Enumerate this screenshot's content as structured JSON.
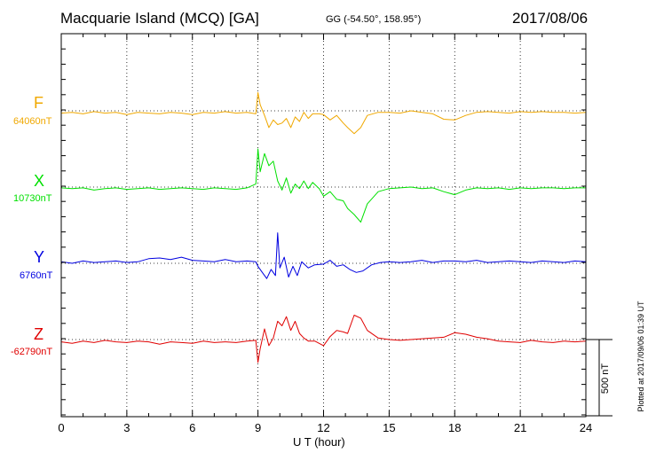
{
  "header": {
    "station": "Macquarie Island (MCQ)  [GA]",
    "coords": "GG (-54.50°, 158.95°)",
    "date": "2017/08/06"
  },
  "footer": {
    "plotted": "Plotted at 2017/09/06 01:39 UT",
    "scale_label": "500 nT"
  },
  "chart_data": {
    "type": "line",
    "xlabel": "U T (hour)",
    "xlim": [
      0,
      24
    ],
    "xticks": [
      "0",
      "3",
      "6",
      "9",
      "12",
      "15",
      "18",
      "21",
      "24"
    ],
    "grid": true,
    "scale_bar_nT": 500,
    "series": [
      {
        "name": "F",
        "baseline_label": "64060nT",
        "color": "#f0a800",
        "x": [
          0,
          0.5,
          1,
          1.5,
          2,
          2.5,
          3,
          3.5,
          4,
          4.5,
          5,
          5.5,
          6,
          6.5,
          7,
          7.5,
          8,
          8.5,
          8.9,
          9.0,
          9.1,
          9.3,
          9.5,
          9.7,
          9.9,
          10.1,
          10.3,
          10.5,
          10.7,
          10.9,
          11.1,
          11.3,
          11.5,
          11.8,
          12.0,
          12.3,
          12.6,
          12.9,
          13.1,
          13.4,
          13.7,
          14.0,
          14.5,
          15,
          15.5,
          16,
          16.5,
          17,
          17.5,
          18,
          18.5,
          19,
          19.5,
          20,
          20.5,
          21,
          21.5,
          22,
          22.5,
          23,
          23.5,
          24
        ],
        "values": [
          -15,
          -10,
          -20,
          -5,
          -15,
          -10,
          -25,
          -10,
          -15,
          -20,
          -10,
          -15,
          -25,
          -10,
          -15,
          -5,
          -15,
          -10,
          -20,
          120,
          40,
          -30,
          -110,
          -60,
          -90,
          -80,
          -50,
          -110,
          -40,
          -70,
          -10,
          -50,
          -20,
          -20,
          -25,
          -60,
          -30,
          -80,
          -110,
          -150,
          -110,
          -30,
          -10,
          -10,
          -15,
          0,
          -10,
          -20,
          -55,
          -60,
          -30,
          -10,
          -5,
          -10,
          -15,
          -5,
          -10,
          -5,
          -10,
          -10,
          -15,
          -10
        ]
      },
      {
        "name": "X",
        "baseline_label": "10730nT",
        "color": "#00e000",
        "x": [
          0,
          0.5,
          1,
          1.5,
          2,
          2.5,
          3,
          3.5,
          4,
          4.5,
          5,
          5.5,
          6,
          6.5,
          7,
          7.5,
          8,
          8.5,
          8.9,
          9.0,
          9.1,
          9.3,
          9.5,
          9.7,
          9.9,
          10.1,
          10.3,
          10.5,
          10.7,
          10.9,
          11.1,
          11.3,
          11.5,
          11.8,
          12.0,
          12.3,
          12.6,
          12.9,
          13.1,
          13.4,
          13.7,
          14.0,
          14.5,
          15,
          15.5,
          16,
          16.5,
          17,
          17.5,
          18,
          18.5,
          19,
          19.5,
          20,
          20.5,
          21,
          21.5,
          22,
          22.5,
          23,
          23.5,
          24
        ],
        "values": [
          -5,
          -10,
          -5,
          -20,
          -10,
          -5,
          -15,
          -10,
          -5,
          -15,
          -10,
          -5,
          -10,
          -15,
          -5,
          -10,
          -15,
          -5,
          20,
          250,
          100,
          220,
          140,
          170,
          40,
          -20,
          60,
          -40,
          20,
          -10,
          40,
          -10,
          30,
          -10,
          -60,
          -30,
          -80,
          -90,
          -140,
          -180,
          -230,
          -110,
          -30,
          -10,
          -5,
          0,
          -10,
          -5,
          -30,
          -50,
          -20,
          -5,
          -10,
          -5,
          -15,
          -5,
          -10,
          -5,
          -5,
          -10,
          -5,
          -5
        ]
      },
      {
        "name": "Y",
        "baseline_label": "6760nT",
        "color": "#0000e0",
        "x": [
          0,
          0.5,
          1,
          1.5,
          2,
          2.5,
          3,
          3.5,
          4,
          4.5,
          5,
          5.5,
          6,
          6.5,
          7,
          7.5,
          8,
          8.5,
          8.9,
          9.0,
          9.2,
          9.4,
          9.6,
          9.8,
          9.9,
          10.0,
          10.2,
          10.4,
          10.6,
          10.8,
          11.0,
          11.3,
          11.6,
          12.0,
          12.3,
          12.6,
          12.9,
          13.2,
          13.5,
          13.8,
          14.2,
          14.6,
          15,
          15.5,
          16,
          16.5,
          17,
          17.5,
          18,
          18.5,
          19,
          19.5,
          20,
          20.5,
          21,
          21.5,
          22,
          22.5,
          23,
          23.5,
          24
        ],
        "values": [
          10,
          0,
          15,
          5,
          10,
          15,
          5,
          10,
          30,
          35,
          25,
          40,
          20,
          15,
          10,
          25,
          10,
          15,
          10,
          -20,
          -60,
          -100,
          -40,
          -80,
          200,
          -30,
          40,
          -90,
          -20,
          -80,
          10,
          -30,
          -10,
          -5,
          20,
          -20,
          -10,
          -40,
          -60,
          -50,
          -10,
          5,
          10,
          5,
          10,
          20,
          5,
          15,
          15,
          10,
          20,
          5,
          10,
          15,
          10,
          5,
          15,
          10,
          5,
          15,
          10
        ]
      },
      {
        "name": "Z",
        "baseline_label": "-62790nT",
        "color": "#e00000",
        "x": [
          0,
          0.5,
          1,
          1.5,
          2,
          2.5,
          3,
          3.5,
          4,
          4.5,
          5,
          5.5,
          6,
          6.5,
          7,
          7.5,
          8,
          8.5,
          8.9,
          9.0,
          9.1,
          9.3,
          9.5,
          9.7,
          9.9,
          10.1,
          10.3,
          10.5,
          10.7,
          10.9,
          11.1,
          11.3,
          11.6,
          12.0,
          12.3,
          12.6,
          12.9,
          13.1,
          13.4,
          13.7,
          14.0,
          14.5,
          15,
          15.5,
          16,
          16.5,
          17,
          17.5,
          18,
          18.5,
          19,
          19.5,
          20,
          20.5,
          21,
          21.5,
          22,
          22.5,
          23,
          23.5,
          24
        ],
        "values": [
          -15,
          -25,
          -10,
          -20,
          -5,
          -15,
          -20,
          -10,
          -15,
          -30,
          -15,
          -20,
          -25,
          -10,
          -20,
          -15,
          -20,
          -10,
          -5,
          -150,
          -60,
          70,
          -40,
          10,
          120,
          90,
          150,
          60,
          120,
          40,
          10,
          -10,
          -10,
          -40,
          20,
          60,
          50,
          40,
          160,
          140,
          60,
          10,
          0,
          -5,
          0,
          5,
          10,
          15,
          45,
          35,
          15,
          5,
          -10,
          -15,
          -20,
          -5,
          -15,
          -20,
          -10,
          -15,
          -10
        ]
      }
    ]
  }
}
